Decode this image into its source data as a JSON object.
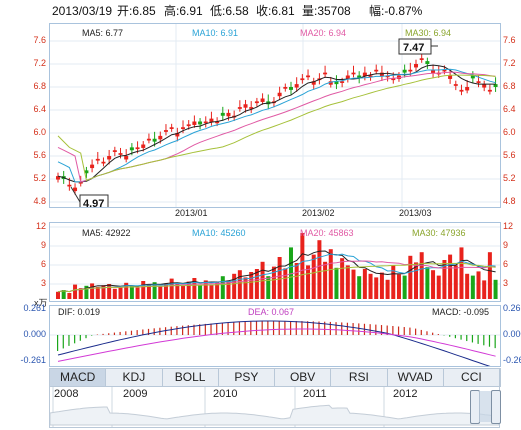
{
  "header": {
    "date": "2013/03/19",
    "open": "开:6.85",
    "high": "高:6.91",
    "low": "低:6.58",
    "close": "收:6.81",
    "volume": "量:35708",
    "change": "幅:-0.87%"
  },
  "price_chart": {
    "y_ticks": [
      "7.6",
      "7.2",
      "6.8",
      "6.4",
      "6.0",
      "5.6",
      "5.2",
      "4.8"
    ],
    "x_ticks": [
      "2013/01",
      "2013/02",
      "2013/03"
    ],
    "ma_legend": {
      "ma5": "MA5: 6.77",
      "ma10": "MA10: 6.91",
      "ma20": "MA20: 6.94",
      "ma30": "MA30: 6.94"
    },
    "high_marker": "7.47",
    "low_marker": "4.97",
    "colors": {
      "up": "#e8221c",
      "down": "#1aa61a",
      "ma5": "#222222",
      "ma10": "#2aa3d6",
      "ma20": "#e05aa4",
      "ma30": "#a6c13a"
    }
  },
  "volume_chart": {
    "y_ticks": [
      "12",
      "9",
      "6",
      "3"
    ],
    "unit": "x万",
    "ma_legend": {
      "ma5": "MA5: 42922",
      "ma10": "MA10: 45260",
      "ma20": "MA20: 45863",
      "ma30": "MA30: 47936"
    }
  },
  "macd_chart": {
    "y_ticks": [
      "0.261",
      "0.000",
      "-0.261"
    ],
    "dif": "DIF: 0.019",
    "dea": "DEA: 0.067",
    "macd": "MACD: -0.095"
  },
  "tabs": [
    "MACD",
    "KDJ",
    "BOLL",
    "PSY",
    "OBV",
    "RSI",
    "WVAD",
    "CCI"
  ],
  "active_tab": "MACD",
  "navigator": {
    "years": [
      "2008",
      "2009",
      "2010",
      "2011",
      "2012"
    ]
  }
}
